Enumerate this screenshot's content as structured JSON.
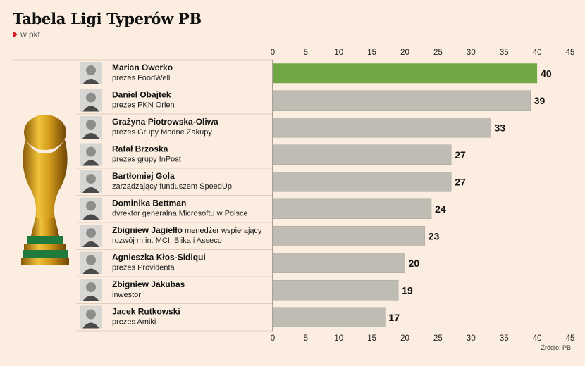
{
  "header": {
    "title": "Tabela Ligi Typerów PB",
    "subtitle": "w pkt"
  },
  "footer": {
    "source": "Źródło: PB"
  },
  "colors": {
    "background": "#fbeee0",
    "highlight_bar": "#72a844",
    "bar": "#bfbdb3",
    "accent": "#d42020",
    "trophy_gold": "#d4a017",
    "trophy_green": "#1f7a3c"
  },
  "icons": {
    "trophy": "world-cup-trophy-icon",
    "avatar": "person-portrait-icon"
  },
  "chart_data": {
    "type": "bar",
    "orientation": "horizontal",
    "title": "Tabela Ligi Typerów PB",
    "subtitle": "w pkt",
    "xlim": [
      0,
      45
    ],
    "ticks": [
      0,
      5,
      10,
      15,
      20,
      25,
      30,
      35,
      40,
      45
    ],
    "axis_position": "top and bottom",
    "grid": false,
    "categories": [
      {
        "name": "Marian Owerko",
        "role": "prezes FoodWell",
        "inline_role": ""
      },
      {
        "name": "Daniel Obajtek",
        "role": "prezes PKN Orlen",
        "inline_role": ""
      },
      {
        "name": "Grażyna Piotrowska-Oliwa",
        "role": "prezes Grupy Modne Zakupy",
        "inline_role": ""
      },
      {
        "name": "Rafał Brzoska",
        "role": "prezes grupy InPost",
        "inline_role": ""
      },
      {
        "name": "Bartłomiej Gola",
        "role": "zarządzający funduszem SpeedUp",
        "inline_role": ""
      },
      {
        "name": "Dominika Bettman",
        "role": "dyrektor generalna Microsoftu w Polsce",
        "inline_role": ""
      },
      {
        "name": "Zbigniew Jagiełło",
        "role": "rozwój m.in. MCI, Blika i Asseco",
        "inline_role": "menedżer wspierający"
      },
      {
        "name": "Agnieszka Kłos-Sidiqui",
        "role": "prezes Providenta",
        "inline_role": ""
      },
      {
        "name": "Zbigniew Jakubas",
        "role": "inwestor",
        "inline_role": ""
      },
      {
        "name": "Jacek Rutkowski",
        "role": "prezes Amiki",
        "inline_role": ""
      }
    ],
    "values": [
      40,
      39,
      33,
      27,
      27,
      24,
      23,
      20,
      19,
      17
    ],
    "highlighted_index": 0
  }
}
